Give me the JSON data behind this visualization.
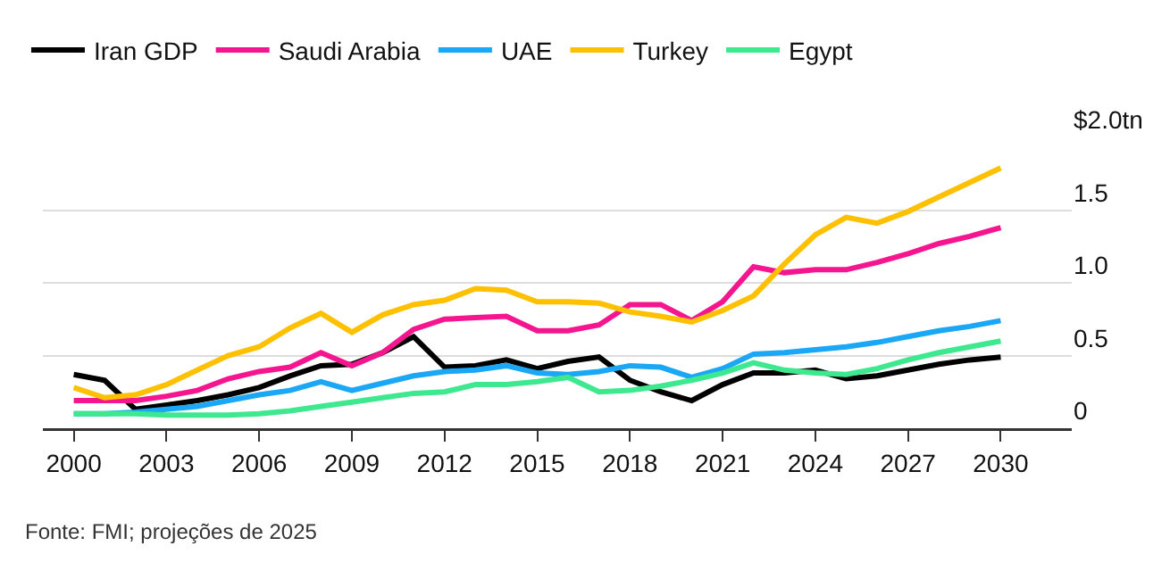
{
  "chart_data": {
    "type": "line",
    "x": [
      2000,
      2001,
      2002,
      2003,
      2004,
      2005,
      2006,
      2007,
      2008,
      2009,
      2010,
      2011,
      2012,
      2013,
      2014,
      2015,
      2016,
      2017,
      2018,
      2019,
      2020,
      2021,
      2022,
      2023,
      2024,
      2025,
      2026,
      2027,
      2028,
      2029,
      2030
    ],
    "series": [
      {
        "name": "Iran GDP",
        "color": "#000000",
        "values": [
          0.37,
          0.33,
          0.13,
          0.16,
          0.19,
          0.23,
          0.28,
          0.36,
          0.43,
          0.44,
          0.52,
          0.63,
          0.42,
          0.43,
          0.47,
          0.41,
          0.46,
          0.49,
          0.33,
          0.25,
          0.19,
          0.3,
          0.38,
          0.38,
          0.4,
          0.34,
          0.36,
          0.4,
          0.44,
          0.47,
          0.49
        ]
      },
      {
        "name": "Saudi Arabia",
        "color": "#f5168f",
        "values": [
          0.19,
          0.19,
          0.19,
          0.22,
          0.26,
          0.34,
          0.39,
          0.42,
          0.52,
          0.43,
          0.52,
          0.68,
          0.75,
          0.76,
          0.77,
          0.67,
          0.67,
          0.71,
          0.85,
          0.85,
          0.74,
          0.87,
          1.11,
          1.07,
          1.09,
          1.09,
          1.14,
          1.2,
          1.27,
          1.32,
          1.38
        ]
      },
      {
        "name": "UAE",
        "color": "#1aa7f5",
        "values": [
          0.1,
          0.1,
          0.11,
          0.13,
          0.15,
          0.19,
          0.23,
          0.26,
          0.32,
          0.26,
          0.31,
          0.36,
          0.39,
          0.4,
          0.43,
          0.38,
          0.37,
          0.39,
          0.43,
          0.42,
          0.35,
          0.41,
          0.51,
          0.52,
          0.54,
          0.56,
          0.59,
          0.63,
          0.67,
          0.7,
          0.74
        ]
      },
      {
        "name": "Turkey",
        "color": "#ffc000",
        "values": [
          0.28,
          0.21,
          0.23,
          0.3,
          0.4,
          0.5,
          0.56,
          0.69,
          0.79,
          0.66,
          0.78,
          0.85,
          0.88,
          0.96,
          0.95,
          0.87,
          0.87,
          0.86,
          0.8,
          0.77,
          0.73,
          0.81,
          0.91,
          1.13,
          1.33,
          1.45,
          1.41,
          1.49,
          1.59,
          1.69,
          1.79
        ]
      },
      {
        "name": "Egypt",
        "color": "#3ee88f",
        "values": [
          0.1,
          0.1,
          0.1,
          0.09,
          0.09,
          0.09,
          0.1,
          0.12,
          0.15,
          0.18,
          0.21,
          0.24,
          0.25,
          0.3,
          0.3,
          0.32,
          0.35,
          0.25,
          0.26,
          0.29,
          0.33,
          0.38,
          0.45,
          0.4,
          0.38,
          0.37,
          0.41,
          0.47,
          0.52,
          0.56,
          0.6
        ]
      }
    ],
    "xlim": [
      1999,
      2032.3
    ],
    "xticks": [
      2000,
      2003,
      2006,
      2009,
      2012,
      2015,
      2018,
      2021,
      2024,
      2027,
      2030
    ],
    "ylim": [
      0,
      2.0
    ],
    "yticks": [
      0,
      0.5,
      {
        "value": 1.0,
        "label": "1.0"
      },
      1.5,
      {
        "value": 2.0,
        "label": "$2.0tn"
      }
    ],
    "grid": "y",
    "legend": "top left",
    "marker": "none",
    "line_style": "solid",
    "annotations": [
      "Fonte: FMI; projeções de 2025"
    ]
  }
}
